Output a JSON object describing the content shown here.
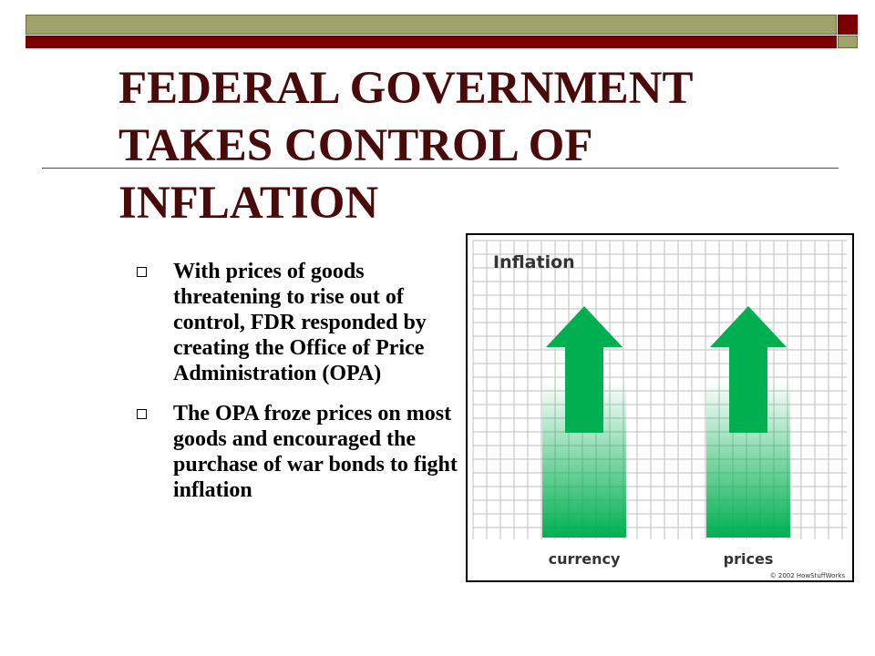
{
  "slide": {
    "title_lines": [
      "FEDERAL GOVERNMENT",
      "TAKES CONTROL OF",
      "INFLATION"
    ],
    "bullets": [
      "With prices of goods threatening to rise out of control, FDR responded by creating the Office of Price Administration (OPA)",
      "The OPA froze prices on most goods and encouraged the purchase of war bonds to fight inflation"
    ]
  },
  "figure": {
    "heading": "Inflation",
    "arrow_labels": [
      "currency",
      "prices"
    ],
    "credit": "© 2002 HowStuffWorks",
    "colors": {
      "arrow": "#00b050",
      "grid": "#bfbfbf",
      "text": "#333333"
    },
    "arrow_icon": "up-arrow-icon"
  },
  "theme": {
    "maroon": "#7a0000",
    "olive": "#a1a16a",
    "title_color": "#4a0a0a"
  }
}
